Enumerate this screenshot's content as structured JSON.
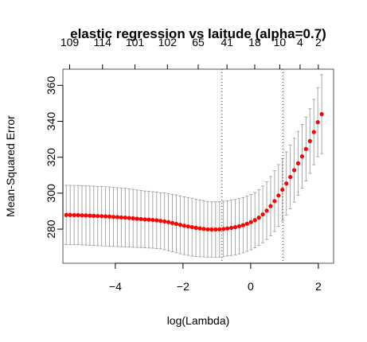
{
  "chart_data": {
    "type": "scatter",
    "title": "elastic regression vs laitude (alpha=0.7)",
    "xlabel": "log(Lambda)",
    "ylabel": "Mean-Squared Error",
    "xlim": [
      -5.55,
      2.45
    ],
    "ylim": [
      261,
      369
    ],
    "x_ticks": [
      -4,
      -2,
      0,
      2
    ],
    "y_ticks": [
      280,
      300,
      320,
      340,
      360
    ],
    "top_axis": {
      "x": [
        -5.35,
        -4.38,
        -3.42,
        -2.46,
        -1.55,
        -0.7,
        0.12,
        0.86,
        1.46,
        2.0
      ],
      "labels": [
        "109",
        "114",
        "101",
        "102",
        "65",
        "41",
        "18",
        "10",
        "4",
        "2"
      ]
    },
    "reference_lines": [
      -0.85,
      0.95
    ],
    "points": {
      "color": "#ff0000",
      "error_bar_color": "#a0a0a0",
      "x_start": -5.45,
      "x_end": 2.1,
      "mse": [
        287.9,
        287.9,
        287.8,
        287.8,
        287.7,
        287.6,
        287.5,
        287.4,
        287.3,
        287.2,
        287.1,
        287.0,
        286.8,
        286.7,
        286.5,
        286.4,
        286.2,
        286.0,
        285.8,
        285.6,
        285.4,
        285.3,
        285.1,
        284.9,
        284.6,
        284.3,
        283.9,
        283.4,
        282.9,
        282.4,
        281.9,
        281.5,
        281.1,
        280.7,
        280.4,
        280.1,
        279.9,
        279.8,
        279.8,
        279.9,
        280.1,
        280.4,
        280.7,
        281.1,
        281.6,
        282.2,
        283.0,
        283.9,
        285.0,
        286.4,
        288.2,
        290.3,
        292.8,
        295.6,
        298.7,
        301.9,
        305.4,
        309.0,
        312.8,
        316.6,
        320.5,
        324.6,
        329.0,
        334.0,
        339.5,
        344.0
      ],
      "lower": [
        271.4,
        271.4,
        271.3,
        271.3,
        271.2,
        271.1,
        271.0,
        270.9,
        270.8,
        270.7,
        270.6,
        270.5,
        270.4,
        270.3,
        270.2,
        270.1,
        270.0,
        269.9,
        269.8,
        269.7,
        269.6,
        269.5,
        269.4,
        269.2,
        269.0,
        268.5,
        268.0,
        267.4,
        266.8,
        266.3,
        265.8,
        265.4,
        265.0,
        264.8,
        264.6,
        264.5,
        264.4,
        264.4,
        264.4,
        264.5,
        264.7,
        265.0,
        265.3,
        265.7,
        266.2,
        266.8,
        267.6,
        268.5,
        269.6,
        270.9,
        272.4,
        274.2,
        276.3,
        278.7,
        281.5,
        284.5,
        287.8,
        291.3,
        295.0,
        298.8,
        302.8,
        306.8,
        311.0,
        315.8,
        320.3,
        322.0
      ],
      "upper": [
        304.4,
        304.4,
        304.3,
        304.3,
        304.2,
        304.1,
        304.0,
        303.9,
        303.8,
        303.7,
        303.6,
        303.5,
        303.2,
        303.1,
        302.8,
        302.7,
        302.4,
        302.1,
        301.8,
        301.5,
        301.2,
        301.1,
        300.8,
        300.6,
        300.2,
        300.1,
        299.8,
        299.4,
        299.0,
        298.5,
        298.0,
        297.6,
        297.2,
        296.6,
        296.2,
        295.7,
        295.4,
        295.2,
        295.2,
        295.3,
        295.5,
        295.8,
        296.1,
        296.5,
        297.0,
        297.6,
        298.4,
        299.3,
        300.4,
        301.9,
        304.0,
        306.4,
        309.3,
        312.5,
        315.9,
        319.3,
        323.0,
        326.7,
        330.6,
        334.4,
        338.2,
        342.4,
        347.0,
        352.2,
        358.7,
        366.0
      ]
    }
  }
}
